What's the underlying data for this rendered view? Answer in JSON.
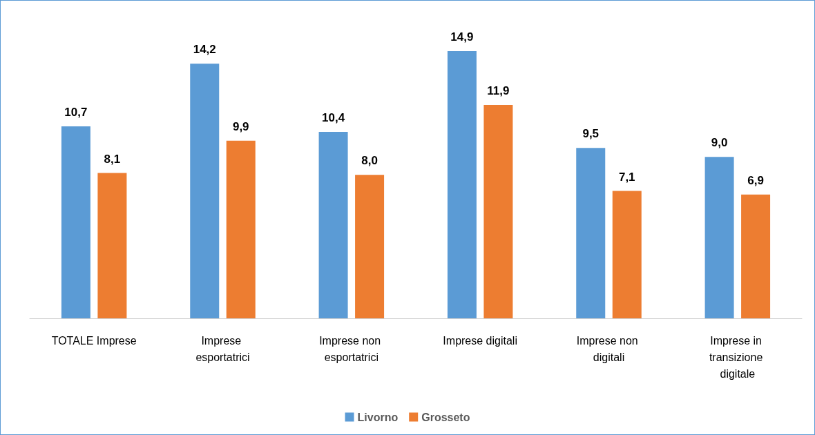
{
  "chart_data": {
    "type": "bar",
    "categories": [
      "TOTALE Imprese",
      "Imprese esportatrici",
      "Imprese non esportatrici",
      "Imprese digitali",
      "Imprese non digitali",
      "Imprese in transizione digitale"
    ],
    "series": [
      {
        "name": "Livorno",
        "color": "#5b9bd5",
        "values": [
          10.7,
          14.2,
          10.4,
          14.9,
          9.5,
          9.0
        ],
        "value_labels": [
          "10,7",
          "14,2",
          "10,4",
          "14,9",
          "9,5",
          "9,0"
        ]
      },
      {
        "name": "Grosseto",
        "color": "#ed7d31",
        "values": [
          8.1,
          9.9,
          8.0,
          11.9,
          7.1,
          6.9
        ],
        "value_labels": [
          "8,1",
          "9,9",
          "8,0",
          "11,9",
          "7,1",
          "6,9"
        ]
      }
    ],
    "legend": "bottom"
  }
}
